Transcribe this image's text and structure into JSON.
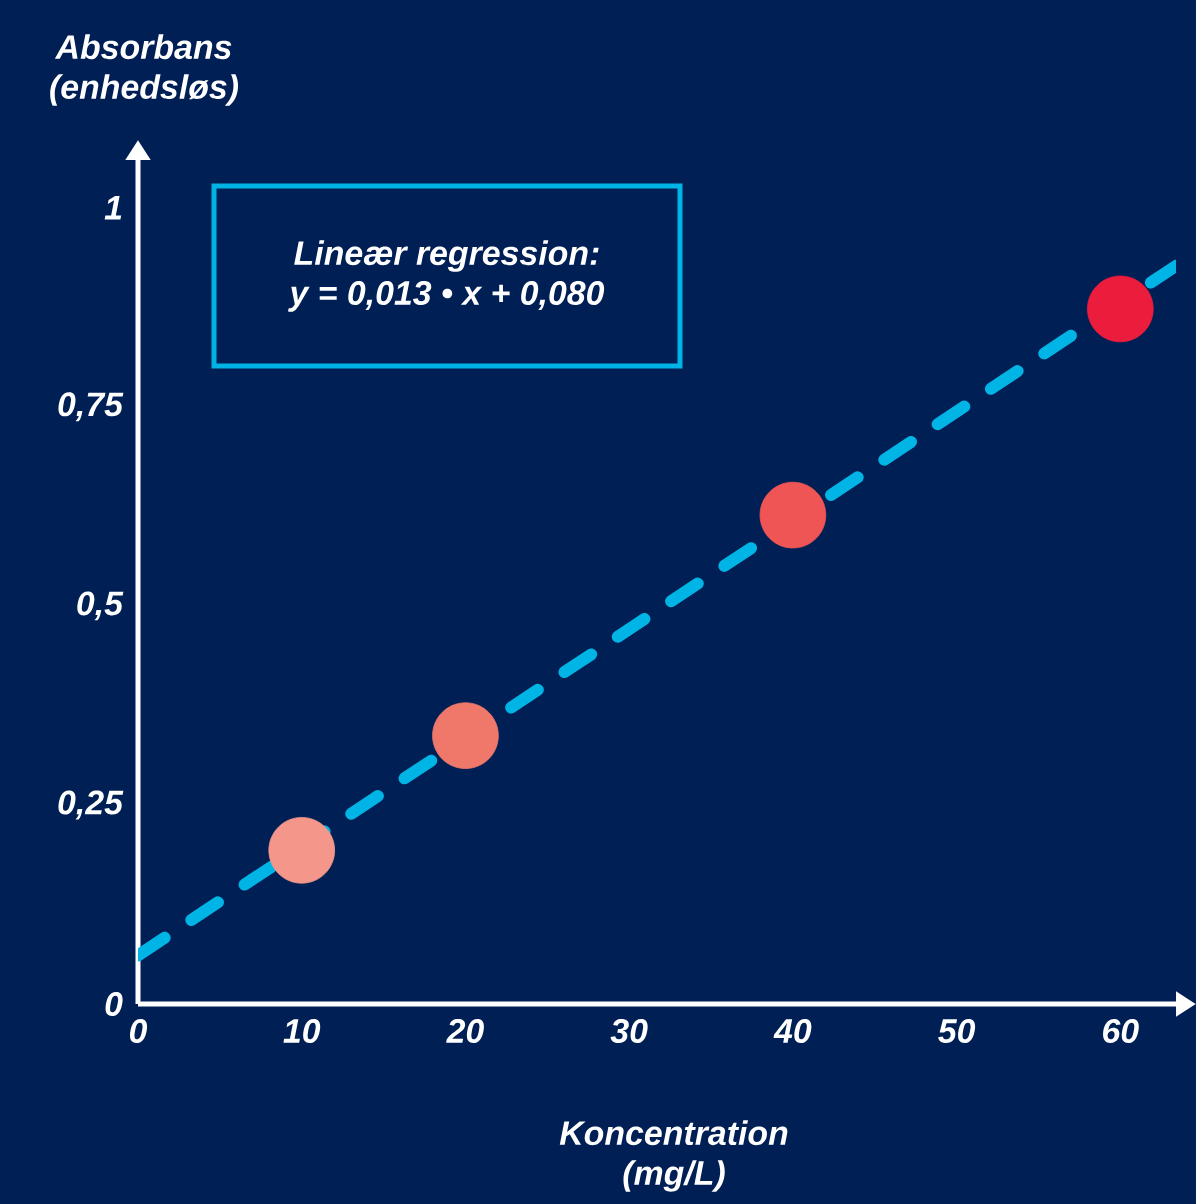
{
  "chart_data": {
    "type": "scatter",
    "xlabel": "Koncentration (mg/L)",
    "ylabel": "Absorbans (enhedsløs)",
    "annotations": [
      "Lineær regression:",
      "y = 0,013 • x + 0,080"
    ],
    "xlim": [
      0,
      63.4
    ],
    "ylim": [
      0,
      1.06
    ],
    "xticks": [
      0,
      10,
      20,
      30,
      40,
      50,
      60
    ],
    "yticks": [
      0,
      {
        "value": 0.25,
        "label": "0,25"
      },
      {
        "value": 0.5,
        "label": "0,5"
      },
      {
        "value": 0.75,
        "label": "0,75"
      },
      1
    ],
    "series": [
      {
        "marker": "circle",
        "x": [
          10,
          20,
          40,
          60
        ],
        "values": [
          0.193,
          0.337,
          0.614,
          0.873
        ],
        "colors": [
          "#f4978a",
          "#f0786a",
          "#ef5555",
          "#ec1c3c"
        ]
      },
      {
        "type": "line",
        "x": [
          0,
          63.4
        ],
        "values": [
          0.061,
          0.927
        ],
        "color": "#00b4e6",
        "line_style": "dashed"
      }
    ]
  }
}
